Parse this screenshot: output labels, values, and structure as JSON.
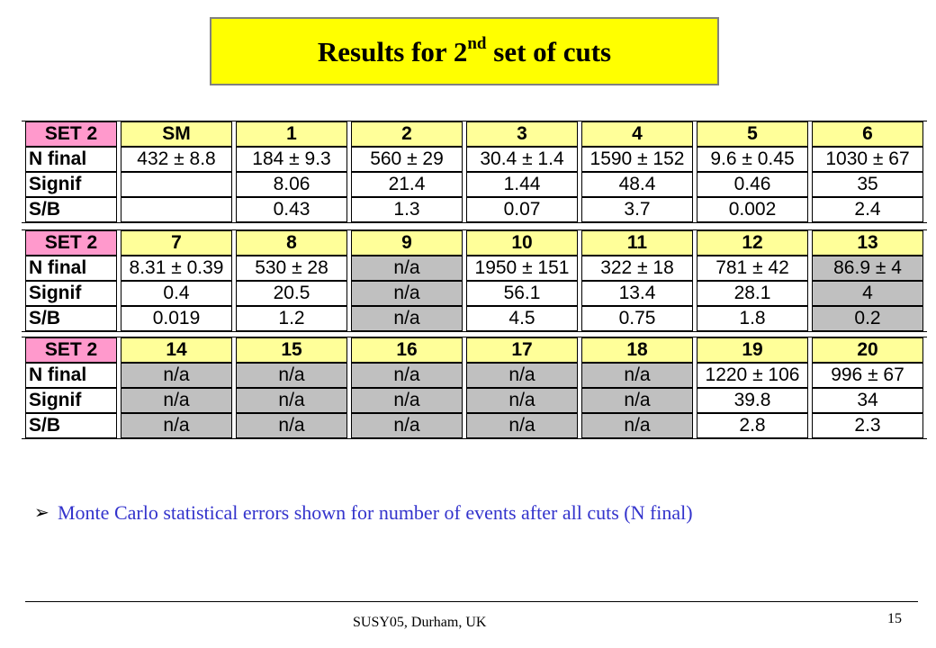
{
  "title": {
    "main": "Results for 2",
    "sup": "nd",
    "rest": " set of cuts"
  },
  "tables": [
    {
      "header": [
        "SET 2",
        "SM",
        "1",
        "2",
        "3",
        "4",
        "5",
        "6"
      ],
      "rows": [
        {
          "label": "N final",
          "cells": [
            "432 ± 8.8",
            "184 ± 9.3",
            "560 ± 29",
            "30.4 ± 1.4",
            "1590 ± 152",
            "9.6 ± 0.45",
            "1030 ± 67"
          ]
        },
        {
          "label": "Signif",
          "cells": [
            "",
            "8.06",
            "21.4",
            "1.44",
            "48.4",
            "0.46",
            "35"
          ]
        },
        {
          "label": "S/B",
          "cells": [
            "",
            "0.43",
            "1.3",
            "0.07",
            "3.7",
            "0.002",
            "2.4"
          ]
        }
      ]
    },
    {
      "header": [
        "SET 2",
        "7",
        "8",
        "9",
        "10",
        "11",
        "12",
        "13"
      ],
      "rows": [
        {
          "label": "N final",
          "cells": [
            "8.31 ± 0.39",
            "530 ± 28",
            "n/a",
            "1950 ± 151",
            "322 ± 18",
            "781 ± 42",
            "86.9 ± 4"
          ]
        },
        {
          "label": "Signif",
          "cells": [
            "0.4",
            "20.5",
            "n/a",
            "56.1",
            "13.4",
            "28.1",
            "4"
          ]
        },
        {
          "label": "S/B",
          "cells": [
            "0.019",
            "1.2",
            "n/a",
            "4.5",
            "0.75",
            "1.8",
            "0.2"
          ]
        }
      ]
    },
    {
      "header": [
        "SET 2",
        "14",
        "15",
        "16",
        "17",
        "18",
        "19",
        "20"
      ],
      "rows": [
        {
          "label": "N final",
          "cells": [
            "n/a",
            "n/a",
            "n/a",
            "n/a",
            "n/a",
            "1220 ± 106",
            "996 ± 67"
          ]
        },
        {
          "label": "Signif",
          "cells": [
            "n/a",
            "n/a",
            "n/a",
            "n/a",
            "n/a",
            "39.8",
            "34"
          ]
        },
        {
          "label": "S/B",
          "cells": [
            "n/a",
            "n/a",
            "n/a",
            "n/a",
            "n/a",
            "2.8",
            "2.3"
          ]
        }
      ]
    }
  ],
  "shaded_columns": [
    [],
    [
      2,
      6
    ],
    [
      0,
      1,
      2,
      3,
      4
    ]
  ],
  "bullet": {
    "icon": "arrow-bullet-icon",
    "text": "Monte Carlo statistical errors shown for number of events after all cuts (N final)"
  },
  "footer": {
    "text": "SUSY05, Durham, UK",
    "page": "15"
  },
  "colors": {
    "title_bg": "#ffff00",
    "header_bg": "#ffff99",
    "set_bg": "#ff99cc",
    "na_bg": "#c0c0c0",
    "bullet_text": "#3333cc"
  }
}
